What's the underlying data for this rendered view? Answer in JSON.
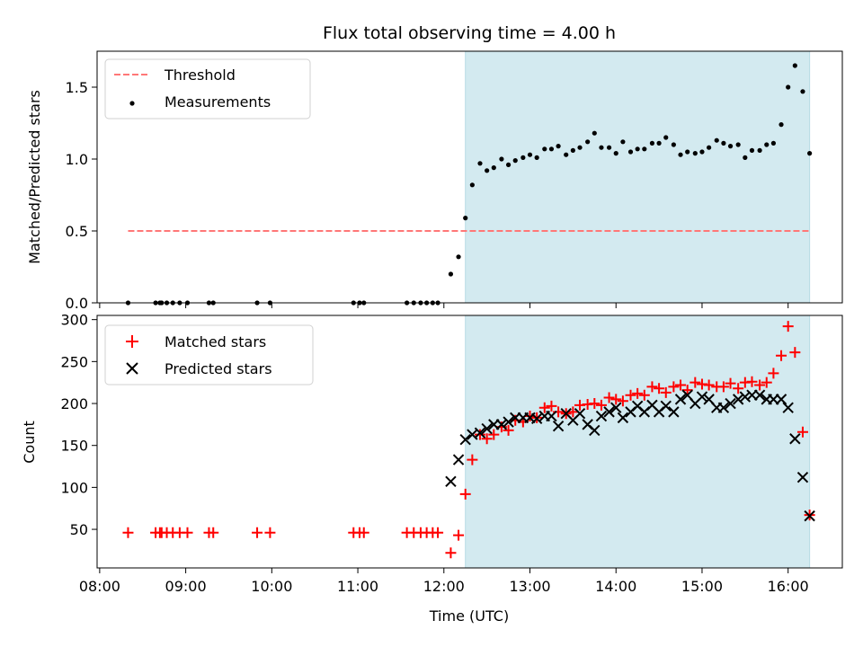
{
  "chart_data": {
    "type": "scatter",
    "title": "Flux total observing time = 4.00 h",
    "xlabel": "Time (UTC)",
    "x_ticks": [
      "08:00",
      "09:00",
      "10:00",
      "11:00",
      "12:00",
      "13:00",
      "14:00",
      "15:00",
      "16:00"
    ],
    "xlim_hours": [
      7.97,
      16.63
    ],
    "observing_window_hours": [
      12.25,
      16.25
    ],
    "shade_color": "#d3eaf0",
    "top": {
      "ylabel": "Matched/Predicted stars",
      "ylim": [
        0,
        1.75
      ],
      "y_ticks": [
        "0.0",
        "0.5",
        "1.0",
        "1.5"
      ],
      "y_tick_values": [
        0,
        0.5,
        1.0,
        1.5
      ],
      "legend": [
        "Threshold",
        "Measurements"
      ],
      "threshold": {
        "value": 0.5,
        "x_range": [
          8.33,
          16.25
        ],
        "color": "#ff7777"
      },
      "measurements": {
        "color": "#000000",
        "x": [
          8.33,
          8.65,
          8.7,
          8.72,
          8.78,
          8.85,
          8.93,
          9.02,
          9.27,
          9.32,
          9.83,
          9.98,
          10.95,
          11.02,
          11.07,
          11.57,
          11.65,
          11.73,
          11.8,
          11.87,
          11.93,
          12.08,
          12.17,
          12.25,
          12.33,
          12.42,
          12.5,
          12.58,
          12.67,
          12.75,
          12.83,
          12.92,
          13.0,
          13.08,
          13.17,
          13.25,
          13.33,
          13.42,
          13.5,
          13.58,
          13.67,
          13.75,
          13.83,
          13.92,
          14.0,
          14.08,
          14.17,
          14.25,
          14.33,
          14.42,
          14.5,
          14.58,
          14.67,
          14.75,
          14.83,
          14.92,
          15.0,
          15.08,
          15.17,
          15.25,
          15.33,
          15.42,
          15.5,
          15.58,
          15.67,
          15.75,
          15.83,
          15.92,
          16.0,
          16.08,
          16.17,
          16.25
        ],
        "y": [
          0,
          0,
          0,
          0,
          0,
          0,
          0,
          0,
          0,
          0,
          0,
          0,
          0,
          0,
          0,
          0,
          0,
          0,
          0,
          0,
          0,
          0.2,
          0.32,
          0.59,
          0.82,
          0.97,
          0.92,
          0.94,
          1.0,
          0.96,
          0.99,
          1.01,
          1.03,
          1.01,
          1.07,
          1.07,
          1.09,
          1.03,
          1.06,
          1.08,
          1.12,
          1.18,
          1.08,
          1.08,
          1.04,
          1.12,
          1.05,
          1.07,
          1.07,
          1.11,
          1.11,
          1.15,
          1.1,
          1.03,
          1.05,
          1.04,
          1.05,
          1.08,
          1.13,
          1.11,
          1.09,
          1.1,
          1.01,
          1.06,
          1.06,
          1.1,
          1.11,
          1.24,
          1.5,
          1.65,
          1.47,
          1.04
        ]
      }
    },
    "bottom": {
      "ylabel": "Count",
      "ylim": [
        4,
        305
      ],
      "y_ticks": [
        "50",
        "100",
        "150",
        "200",
        "250",
        "300"
      ],
      "y_tick_values": [
        50,
        100,
        150,
        200,
        250,
        300
      ],
      "legend": [
        "Matched stars",
        "Predicted stars"
      ],
      "series": [
        {
          "name": "Matched stars",
          "marker": "plus",
          "color": "#ff0000",
          "x": [
            8.33,
            8.65,
            8.7,
            8.72,
            8.78,
            8.85,
            8.93,
            9.02,
            9.27,
            9.32,
            9.83,
            9.98,
            10.95,
            11.02,
            11.07,
            11.57,
            11.65,
            11.73,
            11.8,
            11.87,
            11.93,
            12.08,
            12.17,
            12.25,
            12.33,
            12.42,
            12.5,
            12.58,
            12.67,
            12.75,
            12.83,
            12.92,
            13.0,
            13.08,
            13.17,
            13.25,
            13.33,
            13.42,
            13.5,
            13.58,
            13.67,
            13.75,
            13.83,
            13.92,
            14.0,
            14.08,
            14.17,
            14.25,
            14.33,
            14.42,
            14.5,
            14.58,
            14.67,
            14.75,
            14.83,
            14.92,
            15.0,
            15.08,
            15.17,
            15.25,
            15.33,
            15.42,
            15.5,
            15.58,
            15.67,
            15.75,
            15.83,
            15.92,
            16.0,
            16.08,
            16.17,
            16.25
          ],
          "y": [
            46,
            46,
            46,
            46,
            46,
            46,
            46,
            46,
            46,
            46,
            46,
            46,
            46,
            46,
            46,
            46,
            46,
            46,
            46,
            46,
            46,
            22,
            43,
            92,
            133,
            163,
            158,
            163,
            172,
            168,
            180,
            178,
            185,
            183,
            195,
            197,
            190,
            188,
            190,
            198,
            199,
            200,
            198,
            207,
            205,
            203,
            210,
            212,
            210,
            220,
            218,
            213,
            220,
            222,
            216,
            225,
            223,
            222,
            220,
            220,
            224,
            218,
            225,
            226,
            222,
            225,
            236,
            257,
            292,
            261,
            166,
            67
          ]
        },
        {
          "name": "Predicted stars",
          "marker": "x",
          "color": "#000000",
          "x": [
            12.08,
            12.17,
            12.25,
            12.33,
            12.42,
            12.5,
            12.58,
            12.67,
            12.75,
            12.83,
            12.92,
            13.0,
            13.08,
            13.17,
            13.25,
            13.33,
            13.42,
            13.5,
            13.58,
            13.67,
            13.75,
            13.83,
            13.92,
            14.0,
            14.08,
            14.17,
            14.25,
            14.33,
            14.42,
            14.5,
            14.58,
            14.67,
            14.75,
            14.83,
            14.92,
            15.0,
            15.08,
            15.17,
            15.25,
            15.33,
            15.42,
            15.5,
            15.58,
            15.67,
            15.75,
            15.83,
            15.92,
            16.0,
            16.08,
            16.17,
            16.25
          ],
          "y": [
            107,
            133,
            157,
            163,
            165,
            170,
            175,
            175,
            178,
            183,
            183,
            183,
            182,
            185,
            185,
            173,
            188,
            180,
            188,
            175,
            168,
            185,
            190,
            195,
            183,
            190,
            197,
            190,
            198,
            190,
            197,
            190,
            205,
            210,
            200,
            208,
            205,
            195,
            195,
            200,
            205,
            208,
            210,
            210,
            205,
            205,
            205,
            195,
            158,
            112,
            66
          ]
        }
      ]
    }
  }
}
